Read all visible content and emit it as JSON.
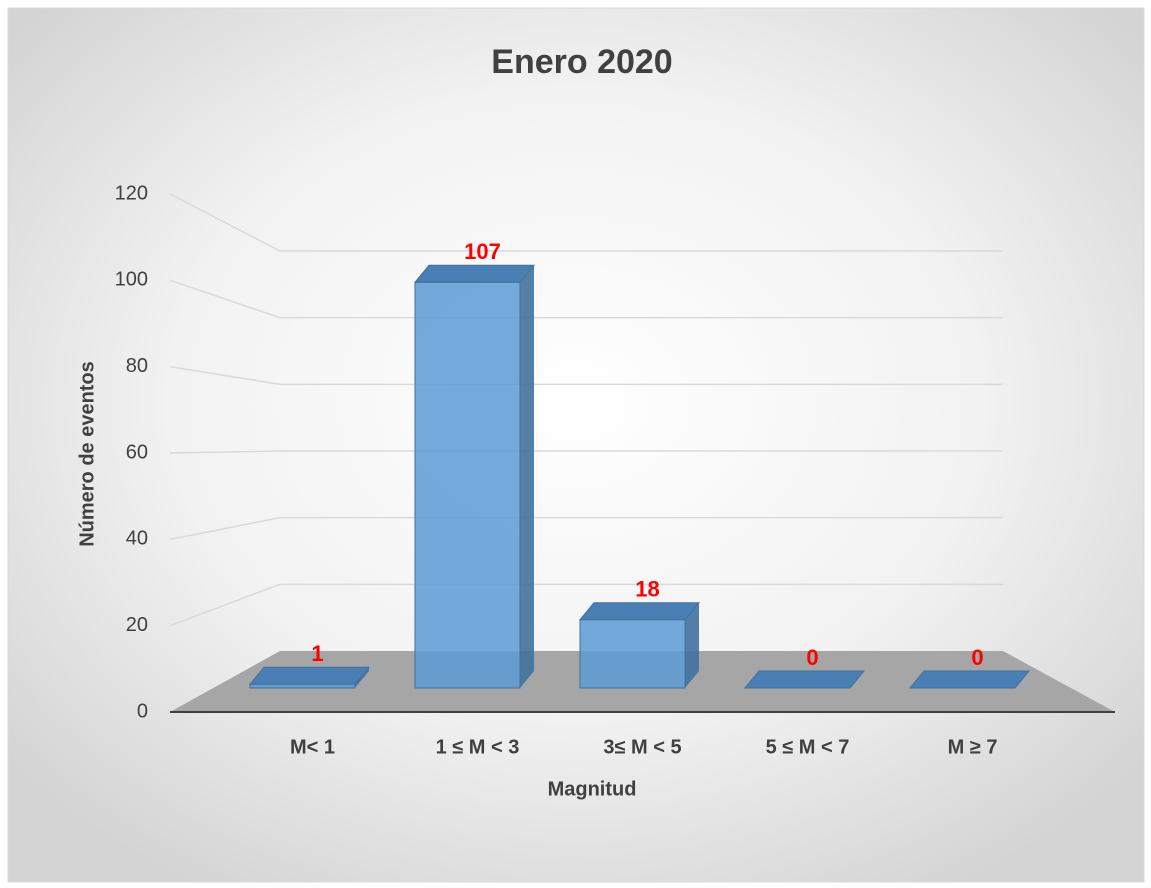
{
  "chart_data": {
    "type": "bar3d",
    "title": "Enero 2020",
    "x_label": "Magnitud",
    "y_label": "Número de eventos",
    "categories": [
      "M< 1",
      "1 ≤ M < 3",
      "3≤ M < 5",
      "5 ≤ M < 7",
      "M ≥ 7"
    ],
    "values": [
      1,
      107,
      18,
      0,
      0
    ],
    "color": "#5b9bd5",
    "value_label_color": "#ff0000",
    "ylim": [
      0,
      120
    ],
    "yticks": [
      0,
      20,
      40,
      60,
      80,
      100,
      120
    ],
    "grid": true
  }
}
